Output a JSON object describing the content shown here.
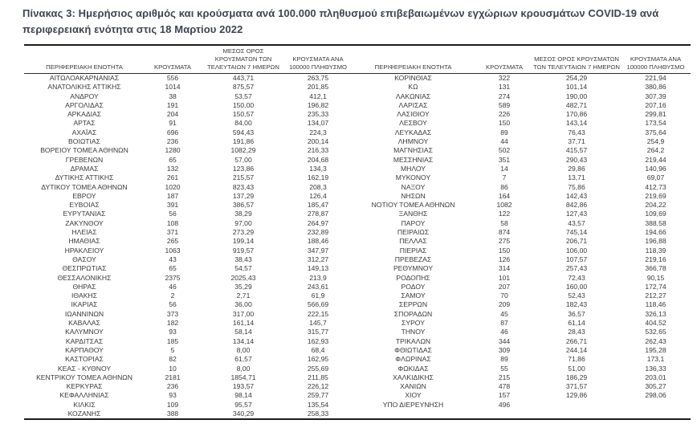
{
  "title": "Πίνακας 3:  Ημερήσιος αριθμός και κρούσματα ανά 100.000 πληθυσμού επιβεβαιωμένων εγχώριων κρουσμάτων COVID-19 ανά περιφερειακή ενότητα στις 18 Μαρτίου 2022",
  "columns": {
    "region": "ΠΕΡΙΦΕΡΕΙΑΚΗ ΕΝΟΤΗΤΑ",
    "cases": "ΚΡΟΥΣΜΑΤΑ",
    "avg7": "ΜΕΣΟΣ ΟΡΟΣ ΚΡΟΥΣΜΑΤΩΝ ΤΩΝ ΤΕΛΕΥΤΑΙΩΝ 7 ΗΜΕΡΩΝ",
    "per100k": "ΚΡΟΥΣΜΑΤΑ ΑΝΑ 100000 ΠΛΗΘΥΣΜΟ"
  },
  "colors": {
    "text": "#3a3a3a",
    "title_text": "#3f4450",
    "border": "#1c1c1c",
    "background": "#ffffff"
  },
  "left_rows": [
    [
      "ΑΙΤΩΛΟΑΚΑΡΝΑΝΙΑΣ",
      "556",
      "443,71",
      "263,75"
    ],
    [
      "ΑΝΑΤΟΛΙΚΗΣ ΑΤΤΙΚΗΣ",
      "1014",
      "875,57",
      "201,85"
    ],
    [
      "ΑΝΔΡΟΥ",
      "38",
      "53,57",
      "412,1"
    ],
    [
      "ΑΡΓΟΛΙΔΑΣ",
      "191",
      "150,00",
      "196,82"
    ],
    [
      "ΑΡΚΑΔΙΑΣ",
      "204",
      "150,57",
      "235,33"
    ],
    [
      "ΑΡΤΑΣ",
      "91",
      "84,00",
      "134,07"
    ],
    [
      "ΑΧΑΪΑΣ",
      "696",
      "594,43",
      "224,3"
    ],
    [
      "ΒΟΙΩΤΙΑΣ",
      "236",
      "191,86",
      "200,14"
    ],
    [
      "ΒΟΡΕΙΟΥ ΤΟΜΕΑ ΑΘΗΝΩΝ",
      "1280",
      "1082,29",
      "216,33"
    ],
    [
      "ΓΡΕΒΕΝΩΝ",
      "65",
      "57,00",
      "204,68"
    ],
    [
      "ΔΡΑΜΑΣ",
      "132",
      "123,86",
      "134,3"
    ],
    [
      "ΔΥΤΙΚΗΣ ΑΤΤΙΚΗΣ",
      "261",
      "215,57",
      "162,19"
    ],
    [
      "ΔΥΤΙΚΟΥ ΤΟΜΕΑ ΑΘΗΝΩΝ",
      "1020",
      "823,43",
      "208,3"
    ],
    [
      "ΕΒΡΟΥ",
      "187",
      "137,29",
      "126,4"
    ],
    [
      "ΕΥΒΟΙΑΣ",
      "391",
      "386,57",
      "185,47"
    ],
    [
      "ΕΥΡΥΤΑΝΙΑΣ",
      "56",
      "38,29",
      "278,87"
    ],
    [
      "ΖΑΚΥΝΘΟΥ",
      "108",
      "97,00",
      "264,97"
    ],
    [
      "ΗΛΕΙΑΣ",
      "371",
      "273,29",
      "232,89"
    ],
    [
      "ΗΜΑΘΙΑΣ",
      "265",
      "199,14",
      "188,46"
    ],
    [
      "ΗΡΑΚΛΕΙΟΥ",
      "1063",
      "919,57",
      "347,97"
    ],
    [
      "ΘΑΣΟΥ",
      "43",
      "38,43",
      "312,27"
    ],
    [
      "ΘΕΣΠΡΩΤΙΑΣ",
      "65",
      "54,57",
      "149,13"
    ],
    [
      "ΘΕΣΣΑΛΟΝΙΚΗΣ",
      "2375",
      "2025,43",
      "213,9"
    ],
    [
      "ΘΗΡΑΣ",
      "46",
      "35,29",
      "243,61"
    ],
    [
      "ΙΘΑΚΗΣ",
      "2",
      "2,71",
      "61,9"
    ],
    [
      "ΙΚΑΡΙΑΣ",
      "56",
      "36,00",
      "566,69"
    ],
    [
      "ΙΩΑΝΝΙΝΩΝ",
      "373",
      "317,00",
      "222,15"
    ],
    [
      "ΚΑΒΑΛΑΣ",
      "182",
      "161,14",
      "145,7"
    ],
    [
      "ΚΑΛΥΜΝΟΥ",
      "93",
      "58,14",
      "315,77"
    ],
    [
      "ΚΑΡΔΙΤΣΑΣ",
      "185",
      "134,14",
      "162,93"
    ],
    [
      "ΚΑΡΠΑΘΟΥ",
      "5",
      "8,00",
      "68,4"
    ],
    [
      "ΚΑΣΤΟΡΙΑΣ",
      "82",
      "61,57",
      "162,95"
    ],
    [
      "ΚΕΑΣ - ΚΥΘΝΟΥ",
      "10",
      "8,00",
      "255,69"
    ],
    [
      "ΚΕΝΤΡΙΚΟΥ ΤΟΜΕΑ ΑΘΗΝΩΝ",
      "2181",
      "1854,71",
      "211,85"
    ],
    [
      "ΚΕΡΚΥΡΑΣ",
      "236",
      "193,57",
      "226,12"
    ],
    [
      "ΚΕΦΑΛΛΗΝΙΑΣ",
      "93",
      "98,14",
      "259,77"
    ],
    [
      "ΚΙΛΚΙΣ",
      "109",
      "95,57",
      "135,54"
    ],
    [
      "ΚΟΖΑΝΗΣ",
      "388",
      "340,29",
      "258,33"
    ]
  ],
  "right_rows": [
    [
      "ΚΟΡΙΝΘΙΑΣ",
      "322",
      "254,29",
      "221,94"
    ],
    [
      "ΚΩ",
      "131",
      "101,14",
      "380,86"
    ],
    [
      "ΛΑΚΩΝΙΑΣ",
      "274",
      "190,00",
      "307,39"
    ],
    [
      "ΛΑΡΙΣΑΣ",
      "589",
      "482,71",
      "207,16"
    ],
    [
      "ΛΑΣΙΘΙΟΥ",
      "226",
      "170,86",
      "299,81"
    ],
    [
      "ΛΕΣΒΟΥ",
      "150",
      "143,14",
      "173,54"
    ],
    [
      "ΛΕΥΚΑΔΑΣ",
      "89",
      "76,43",
      "375,64"
    ],
    [
      "ΛΗΜΝΟΥ",
      "44",
      "37,71",
      "254,9"
    ],
    [
      "ΜΑΓΝΗΣΙΑΣ",
      "502",
      "415,57",
      "264,2"
    ],
    [
      "ΜΕΣΣΗΝΙΑΣ",
      "351",
      "290,43",
      "219,44"
    ],
    [
      "ΜΗΛΟΥ",
      "14",
      "29,86",
      "140,96"
    ],
    [
      "ΜΥΚΟΝΟΥ",
      "7",
      "13,71",
      "69,07"
    ],
    [
      "ΝΑΞΟΥ",
      "86",
      "75,86",
      "412,73"
    ],
    [
      "ΝΗΣΩΝ",
      "164",
      "142,43",
      "219,69"
    ],
    [
      "ΝΟΤΙΟΥ ΤΟΜΕΑ ΑΘΗΝΩΝ",
      "1082",
      "842,86",
      "204,22"
    ],
    [
      "ΞΑΝΘΗΣ",
      "122",
      "127,43",
      "109,69"
    ],
    [
      "ΠΑΡΟΥ",
      "58",
      "43,57",
      "388,58"
    ],
    [
      "ΠΕΙΡΑΙΩΣ",
      "874",
      "745,14",
      "194,66"
    ],
    [
      "ΠΕΛΛΑΣ",
      "275",
      "206,71",
      "196,88"
    ],
    [
      "ΠΙΕΡΙΑΣ",
      "150",
      "106,00",
      "118,39"
    ],
    [
      "ΠΡΕΒΕΖΑΣ",
      "126",
      "107,57",
      "219,16"
    ],
    [
      "ΡΕΘΥΜΝΟΥ",
      "314",
      "257,43",
      "366,78"
    ],
    [
      "ΡΟΔΟΠΗΣ",
      "101",
      "72,43",
      "90,15"
    ],
    [
      "ΡΟΔΟΥ",
      "207",
      "160,00",
      "172,74"
    ],
    [
      "ΣΑΜΟΥ",
      "70",
      "52,43",
      "212,27"
    ],
    [
      "ΣΕΡΡΩΝ",
      "209",
      "182,43",
      "118,46"
    ],
    [
      "ΣΠΟΡΑΔΩΝ",
      "45",
      "36,57",
      "326,13"
    ],
    [
      "ΣΥΡΟΥ",
      "87",
      "61,14",
      "404,52"
    ],
    [
      "ΤΗΝΟΥ",
      "46",
      "28,43",
      "532,65"
    ],
    [
      "ΤΡΙΚΑΛΩΝ",
      "344",
      "266,71",
      "262,43"
    ],
    [
      "ΦΘΙΩΤΙΔΑΣ",
      "309",
      "244,14",
      "195,28"
    ],
    [
      "ΦΛΩΡΙΝΑΣ",
      "89",
      "71,86",
      "173,1"
    ],
    [
      "ΦΩΚΙΔΑΣ",
      "55",
      "51,00",
      "136,33"
    ],
    [
      "ΧΑΛΚΙΔΙΚΗΣ",
      "215",
      "186,29",
      "203,01"
    ],
    [
      "ΧΑΝΙΩΝ",
      "478",
      "371,57",
      "305,27"
    ],
    [
      "ΧΙΟΥ",
      "157",
      "129,86",
      "298,06"
    ],
    [
      "ΥΠΟ ΔΙΕΡΕΥΝΗΣΗ",
      "496",
      "",
      ""
    ]
  ]
}
